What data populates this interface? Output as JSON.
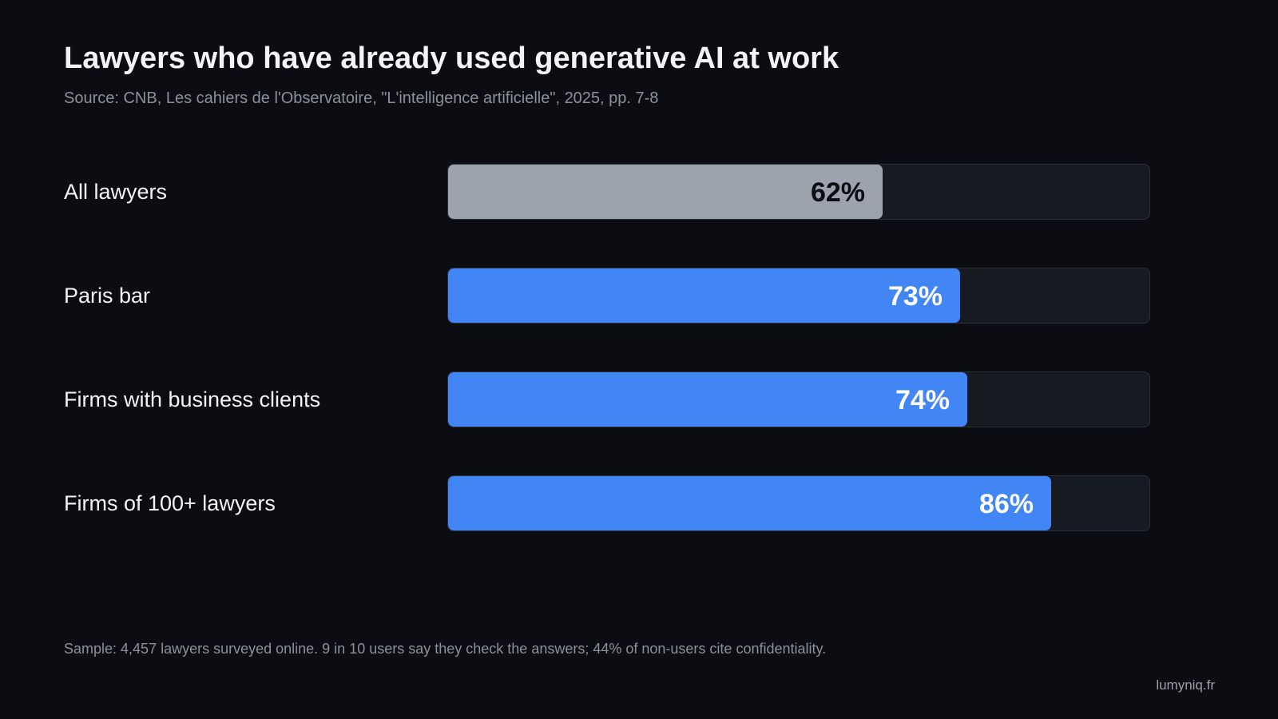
{
  "title": "Lawyers who have already used generative AI at work",
  "subtitle": "Source: CNB, Les cahiers de l'Observatoire, \"L'intelligence artificielle\", 2025, pp. 7-8",
  "footnote": "Sample: 4,457 lawyers surveyed online. 9 in 10 users say they check the answers; 44% of non-users cite confidentiality.",
  "brand": "lumyniq.fr",
  "colors": {
    "background": "#0b0d13",
    "track": "#161a22",
    "highlight": "#4285f4",
    "baseline": "#9ca3af",
    "label_on_highlight": "#ffffff",
    "label_on_baseline": "#0b0d13"
  },
  "chart_data": {
    "type": "bar",
    "orientation": "horizontal",
    "categories": [
      "All lawyers",
      "Paris bar",
      "Firms with business clients",
      "Firms of 100+ lawyers"
    ],
    "values": [
      62,
      73,
      74,
      86
    ],
    "value_labels": [
      "62%",
      "73%",
      "74%",
      "86%"
    ],
    "unit": "%",
    "xlim": [
      0,
      100
    ],
    "grid": false,
    "legend": "none"
  }
}
